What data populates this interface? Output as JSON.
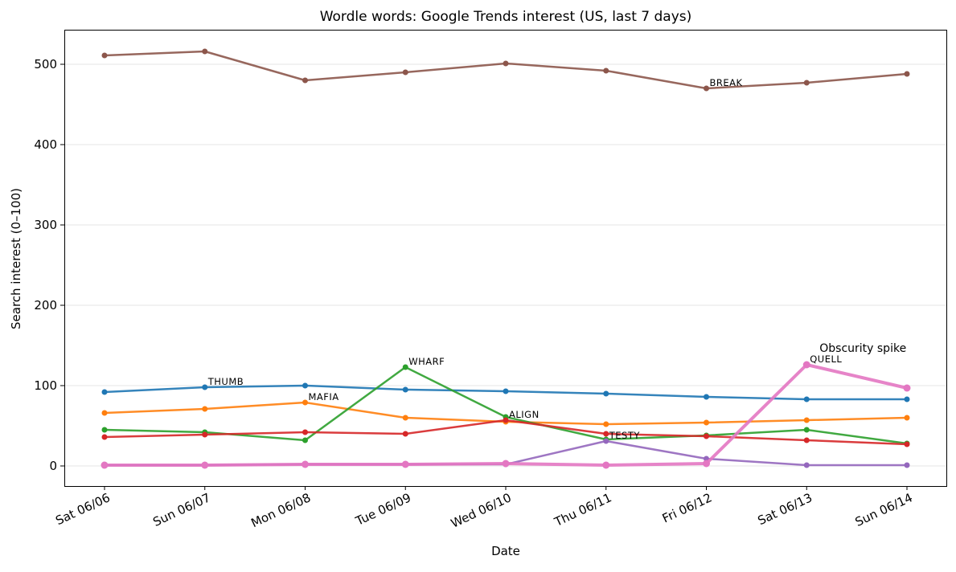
{
  "chart_data": {
    "type": "line",
    "title": "Wordle words: Google Trends interest (US, last 7 days)",
    "xlabel": "Date",
    "ylabel": "Search interest (0–100)",
    "ylim": [
      -25,
      543
    ],
    "yticks": [
      0,
      100,
      200,
      300,
      400,
      500
    ],
    "grid": "horizontal",
    "categories": [
      "Sat 06/06",
      "Sun 06/07",
      "Mon 06/08",
      "Tue 06/09",
      "Wed 06/10",
      "Thu 06/11",
      "Fri 06/12",
      "Sat 06/13",
      "Sun 06/14"
    ],
    "series": [
      {
        "word": "BREAK",
        "color": "#8c564b",
        "label_index": 6,
        "values": [
          511,
          516,
          480,
          490,
          501,
          492,
          470,
          477,
          488
        ]
      },
      {
        "word": "THUMB",
        "color": "#1f77b4",
        "label_index": 1,
        "values": [
          92,
          98,
          100,
          95,
          93,
          90,
          86,
          83,
          83
        ]
      },
      {
        "word": "MAFIA",
        "color": "#ff7f0e",
        "label_index": 2,
        "values": [
          66,
          71,
          79,
          60,
          55,
          52,
          54,
          57,
          60
        ]
      },
      {
        "word": "WHARF",
        "color": "#2ca02c",
        "label_index": 3,
        "values": [
          45,
          42,
          32,
          123,
          61,
          33,
          38,
          45,
          28
        ]
      },
      {
        "word": "ALIGN",
        "color": "#d62728",
        "label_index": 4,
        "values": [
          36,
          39,
          42,
          40,
          57,
          40,
          37,
          32,
          27
        ]
      },
      {
        "word": "TESTY",
        "color": "#9467bd",
        "label_index": 5,
        "values": [
          1,
          1,
          2,
          2,
          2,
          31,
          9,
          1,
          1
        ]
      },
      {
        "word": "QUELL",
        "color": "#e377c2",
        "label_index": 7,
        "highlight": true,
        "values": [
          1,
          1,
          2,
          2,
          3,
          1,
          3,
          126,
          97
        ]
      }
    ],
    "annotations": [
      {
        "text": "Obscurity spike",
        "x": "Sat 06/13",
        "y": 126
      }
    ]
  }
}
